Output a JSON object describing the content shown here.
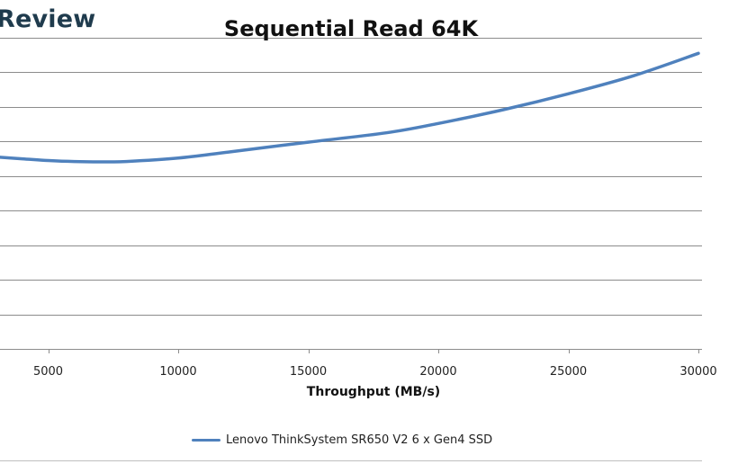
{
  "brand": {
    "text": "Review"
  },
  "chart_data": {
    "type": "line",
    "title": "Sequential Read 64K",
    "xlabel": "Throughput (MB/s)",
    "ylabel": "",
    "x_ticks": [
      5000,
      10000,
      15000,
      20000,
      25000,
      30000
    ],
    "x_tick_labels": [
      "5000",
      "10000",
      "15000",
      "20000",
      "25000",
      "30000"
    ],
    "xlim": [
      3000,
      30000
    ],
    "ylim": [
      0,
      9
    ],
    "y_gridlines": [
      0,
      1,
      2,
      3,
      4,
      5,
      6,
      7,
      8,
      9
    ],
    "grid": true,
    "legend_position": "bottom",
    "series": [
      {
        "name": "Lenovo ThinkSystem SR650 V2 6 x Gen4 SSD",
        "color": "#4f81bd",
        "points": [
          {
            "x": 3000,
            "y": 5.55
          },
          {
            "x": 4000,
            "y": 5.5
          },
          {
            "x": 5000,
            "y": 5.45
          },
          {
            "x": 6000,
            "y": 5.42
          },
          {
            "x": 7000,
            "y": 5.41
          },
          {
            "x": 8000,
            "y": 5.42
          },
          {
            "x": 10000,
            "y": 5.52
          },
          {
            "x": 12000,
            "y": 5.7
          },
          {
            "x": 15000,
            "y": 5.98
          },
          {
            "x": 18000,
            "y": 6.25
          },
          {
            "x": 20000,
            "y": 6.52
          },
          {
            "x": 22500,
            "y": 6.92
          },
          {
            "x": 25000,
            "y": 7.38
          },
          {
            "x": 27500,
            "y": 7.9
          },
          {
            "x": 30000,
            "y": 8.55
          }
        ]
      }
    ]
  }
}
